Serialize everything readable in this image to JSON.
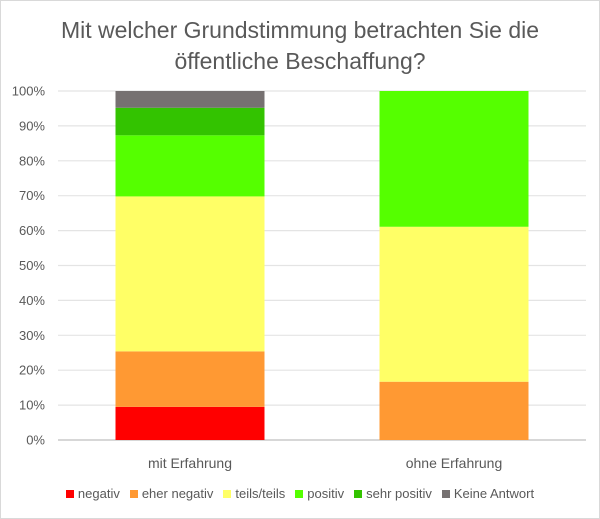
{
  "chart_data": {
    "type": "bar",
    "stacked": true,
    "title_lines": [
      "Mit welcher Grundstimmung betrachten Sie die",
      "öffentliche Beschaffung?"
    ],
    "categories": [
      "mit Erfahrung",
      "ohne Erfahrung"
    ],
    "ylim": [
      0,
      100
    ],
    "yticks": [
      "0%",
      "10%",
      "20%",
      "30%",
      "40%",
      "50%",
      "60%",
      "70%",
      "80%",
      "90%",
      "100%"
    ],
    "grid": true,
    "legend_position": "bottom",
    "series": [
      {
        "name": "negativ",
        "color": "#ff0000",
        "values": [
          9.5,
          0
        ]
      },
      {
        "name": "eher negativ",
        "color": "#ff9933",
        "values": [
          15.9,
          16.7
        ]
      },
      {
        "name": "teils/teils",
        "color": "#ffff66",
        "values": [
          44.4,
          44.4
        ]
      },
      {
        "name": "positiv",
        "color": "#55ff00",
        "values": [
          17.5,
          38.9
        ]
      },
      {
        "name": "sehr positiv",
        "color": "#33c300",
        "values": [
          7.9,
          0
        ]
      },
      {
        "name": "Keine Antwort",
        "color": "#767171",
        "values": [
          4.8,
          0
        ]
      }
    ]
  }
}
